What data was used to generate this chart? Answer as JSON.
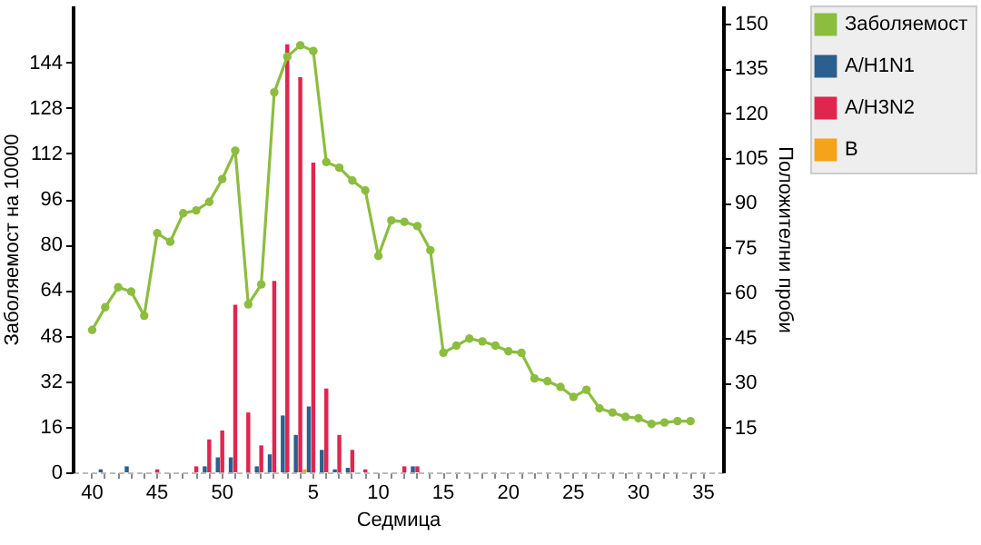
{
  "chart_data": {
    "type": "bar",
    "xlabel": "Седмица",
    "ylabel": "Заболяемост на 10000",
    "y2label": "Положителни проби",
    "categories": [
      "40",
      null,
      null,
      null,
      null,
      "45",
      null,
      null,
      null,
      null,
      "50",
      null,
      null,
      null,
      null,
      null,
      null,
      "5",
      null,
      null,
      null,
      null,
      "10",
      null,
      null,
      null,
      null,
      "15",
      null,
      null,
      null,
      null,
      "20",
      null,
      null,
      null,
      null,
      "25",
      null,
      null,
      null,
      null,
      "30",
      null,
      null,
      null,
      null,
      "35"
    ],
    "series": [
      {
        "name": "Заболяемост",
        "type": "line",
        "axis": "y",
        "color": "#8cbd3f",
        "values": [
          50,
          58,
          65,
          63.5,
          55,
          84,
          81,
          91,
          92,
          95,
          103,
          113,
          59,
          66,
          133.5,
          146,
          150,
          148,
          109,
          107,
          102.5,
          99,
          76,
          88.5,
          88,
          86.5,
          78,
          42,
          44.5,
          47,
          46,
          44.5,
          42.5,
          42,
          33,
          32,
          30,
          26.5,
          29,
          22.5,
          21,
          19.5,
          19,
          17,
          17.5,
          18,
          18,
          null
        ]
      },
      {
        "name": "A/H1N1",
        "axis": "y2",
        "color": "#2b5f8f",
        "values": [
          null,
          1,
          null,
          2,
          null,
          null,
          null,
          null,
          null,
          2,
          5,
          5,
          null,
          2,
          6,
          19,
          12.5,
          22,
          7.5,
          1,
          1.5,
          null,
          null,
          null,
          null,
          2,
          null,
          null,
          null,
          null,
          null,
          null,
          null,
          null,
          null,
          null,
          null,
          null,
          null,
          null,
          null,
          null,
          null,
          null,
          null,
          null,
          null,
          null
        ]
      },
      {
        "name": "A/H3N2",
        "axis": "y2",
        "color": "#e0264f",
        "values": [
          null,
          null,
          null,
          null,
          null,
          1,
          null,
          null,
          2,
          11,
          14,
          56,
          20,
          9,
          64,
          143,
          132,
          103.5,
          28,
          12.5,
          7.5,
          1,
          null,
          null,
          2,
          2,
          null,
          null,
          null,
          null,
          null,
          null,
          null,
          null,
          null,
          null,
          null,
          null,
          null,
          null,
          null,
          null,
          null,
          null,
          null,
          null,
          null,
          null
        ]
      },
      {
        "name": "B",
        "axis": "y2",
        "color": "#f5a31a",
        "values": [
          null,
          null,
          null,
          null,
          null,
          null,
          null,
          null,
          null,
          null,
          null,
          null,
          null,
          null,
          null,
          null,
          1,
          null,
          null,
          null,
          null,
          null,
          null,
          null,
          null,
          null,
          null,
          null,
          null,
          null,
          null,
          null,
          null,
          null,
          null,
          null,
          null,
          null,
          null,
          null,
          null,
          null,
          null,
          null,
          null,
          null,
          null,
          null
        ]
      }
    ],
    "ylim": [
      0,
      164
    ],
    "yticks": [
      0,
      16,
      32,
      48,
      64,
      80,
      96,
      112,
      128,
      144
    ],
    "y2lim": [
      0,
      156
    ],
    "y2ticks": [
      15,
      30,
      45,
      60,
      75,
      90,
      105,
      120,
      135,
      150
    ],
    "marker": "circle",
    "grid": false,
    "legend": "top right"
  }
}
